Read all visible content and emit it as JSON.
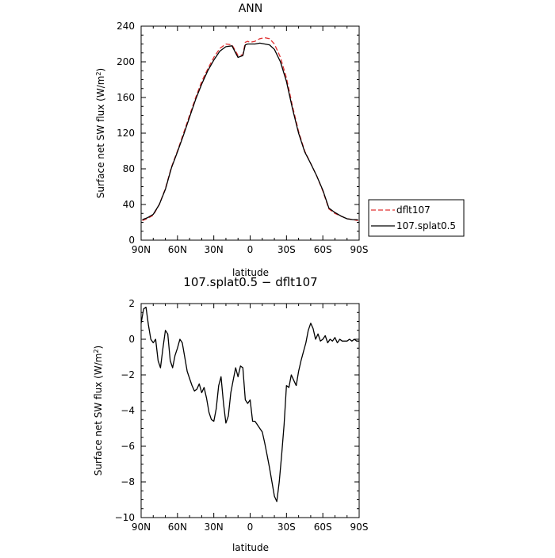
{
  "chart_data": [
    {
      "type": "line",
      "title": "ANN",
      "xlabel": "latitude",
      "ylabel": "Surface net SW flux (W/m",
      "ylabel_sup": "2",
      "ylabel_close": ")",
      "xlim": [
        90,
        -90
      ],
      "ylim": [
        0,
        240
      ],
      "x_ticks": [
        {
          "value": 90,
          "label": "90N"
        },
        {
          "value": 60,
          "label": "60N"
        },
        {
          "value": 30,
          "label": "30N"
        },
        {
          "value": 0,
          "label": "0"
        },
        {
          "value": -30,
          "label": "30S"
        },
        {
          "value": -60,
          "label": "60S"
        },
        {
          "value": -90,
          "label": "90S"
        }
      ],
      "y_ticks": [
        {
          "value": 0,
          "label": "0"
        },
        {
          "value": 40,
          "label": "40"
        },
        {
          "value": 80,
          "label": "80"
        },
        {
          "value": 120,
          "label": "120"
        },
        {
          "value": 160,
          "label": "160"
        },
        {
          "value": 200,
          "label": "200"
        },
        {
          "value": 240,
          "label": "240"
        }
      ],
      "legend_position": "right",
      "series": [
        {
          "name": "dflt107",
          "color": "#e03030",
          "dash": "dashed",
          "x": [
            89,
            85,
            80,
            75,
            70,
            65,
            60,
            55,
            50,
            45,
            40,
            35,
            30,
            25,
            20,
            15,
            12,
            10,
            6,
            4,
            2,
            0,
            -4,
            -8,
            -12,
            -16,
            -20,
            -25,
            -30,
            -35,
            -40,
            -45,
            -50,
            -55,
            -60,
            -65,
            -70,
            -75,
            -80,
            -85,
            -89
          ],
          "y": [
            22,
            24,
            28,
            40,
            58,
            82,
            100,
            120,
            140,
            160,
            178,
            192,
            205,
            215,
            220,
            219,
            212,
            207,
            208,
            222,
            223,
            222,
            223,
            226,
            227,
            226,
            220,
            205,
            182,
            150,
            122,
            100,
            86,
            72,
            55,
            35,
            30,
            27,
            24,
            23,
            22
          ]
        },
        {
          "name": "107.splat0.5",
          "color": "#000000",
          "dash": "solid",
          "x": [
            89,
            85,
            80,
            75,
            70,
            65,
            60,
            55,
            50,
            45,
            40,
            35,
            30,
            25,
            20,
            15,
            12,
            10,
            6,
            4,
            2,
            0,
            -4,
            -8,
            -12,
            -16,
            -20,
            -25,
            -30,
            -35,
            -40,
            -45,
            -50,
            -55,
            -60,
            -65,
            -70,
            -75,
            -80,
            -85,
            -89
          ],
          "y": [
            23,
            25,
            29,
            40,
            57,
            81,
            99,
            118,
            138,
            158,
            175,
            190,
            202,
            212,
            217,
            218,
            210,
            205,
            207,
            219,
            220,
            220,
            220,
            221,
            220,
            219,
            214,
            200,
            178,
            147,
            120,
            99,
            86,
            72,
            56,
            36,
            31,
            27,
            24,
            23,
            23
          ]
        }
      ]
    },
    {
      "type": "line",
      "title": "107.splat0.5 − dflt107",
      "xlabel": "latitude",
      "ylabel": "Surface net SW flux (W/m",
      "ylabel_sup": "2",
      "ylabel_close": ")",
      "xlim": [
        90,
        -90
      ],
      "ylim": [
        -10,
        2
      ],
      "x_ticks": [
        {
          "value": 90,
          "label": "90N"
        },
        {
          "value": 60,
          "label": "60N"
        },
        {
          "value": 30,
          "label": "30N"
        },
        {
          "value": 0,
          "label": "0"
        },
        {
          "value": -30,
          "label": "30S"
        },
        {
          "value": -60,
          "label": "60S"
        },
        {
          "value": -90,
          "label": "90S"
        }
      ],
      "y_ticks": [
        {
          "value": 2,
          "label": "2"
        },
        {
          "value": 0,
          "label": "0"
        },
        {
          "value": -2,
          "label": "−2"
        },
        {
          "value": -4,
          "label": "−4"
        },
        {
          "value": -6,
          "label": "−6"
        },
        {
          "value": -8,
          "label": "−8"
        },
        {
          "value": -10,
          "label": "−10"
        }
      ],
      "series": [
        {
          "color": "#000000",
          "dash": "solid",
          "x": [
            90,
            88,
            86,
            84,
            82,
            80,
            78,
            76,
            74,
            72,
            70,
            68,
            66,
            64,
            62,
            60,
            58,
            56,
            54,
            52,
            50,
            48,
            46,
            44,
            42,
            40,
            38,
            36,
            34,
            32,
            30,
            28,
            26,
            24,
            22,
            20,
            18,
            16,
            14,
            12,
            10,
            8,
            6,
            4,
            2,
            0,
            -2,
            -4,
            -6,
            -8,
            -10,
            -12,
            -14,
            -16,
            -18,
            -20,
            -22,
            -24,
            -26,
            -28,
            -30,
            -32,
            -34,
            -36,
            -38,
            -40,
            -42,
            -44,
            -46,
            -48,
            -50,
            -52,
            -54,
            -56,
            -58,
            -60,
            -62,
            -64,
            -66,
            -68,
            -70,
            -72,
            -74,
            -76,
            -78,
            -80,
            -82,
            -84,
            -86,
            -88,
            -90
          ],
          "y": [
            0.9,
            1.7,
            1.8,
            0.8,
            0.0,
            -0.2,
            0.0,
            -1.2,
            -1.6,
            -0.5,
            0.5,
            0.3,
            -1.2,
            -1.6,
            -0.9,
            -0.5,
            0.0,
            -0.2,
            -1.0,
            -1.8,
            -2.2,
            -2.6,
            -2.9,
            -2.8,
            -2.5,
            -3.0,
            -2.7,
            -3.3,
            -4.1,
            -4.5,
            -4.6,
            -3.9,
            -2.6,
            -2.1,
            -3.6,
            -4.7,
            -4.3,
            -3.0,
            -2.3,
            -1.6,
            -2.1,
            -1.5,
            -1.6,
            -3.4,
            -3.6,
            -3.4,
            -4.6,
            -4.6,
            -4.8,
            -5.0,
            -5.2,
            -5.8,
            -6.5,
            -7.2,
            -8.0,
            -8.8,
            -9.1,
            -8.0,
            -6.5,
            -4.8,
            -2.6,
            -2.7,
            -2.0,
            -2.3,
            -2.6,
            -1.8,
            -1.2,
            -0.7,
            -0.2,
            0.5,
            0.9,
            0.6,
            0.0,
            0.3,
            -0.1,
            0.0,
            0.2,
            -0.2,
            0.0,
            -0.1,
            0.1,
            -0.2,
            0.0,
            -0.1,
            -0.1,
            -0.1,
            0.0,
            -0.1,
            0.0,
            -0.1,
            -0.1
          ]
        }
      ]
    }
  ]
}
